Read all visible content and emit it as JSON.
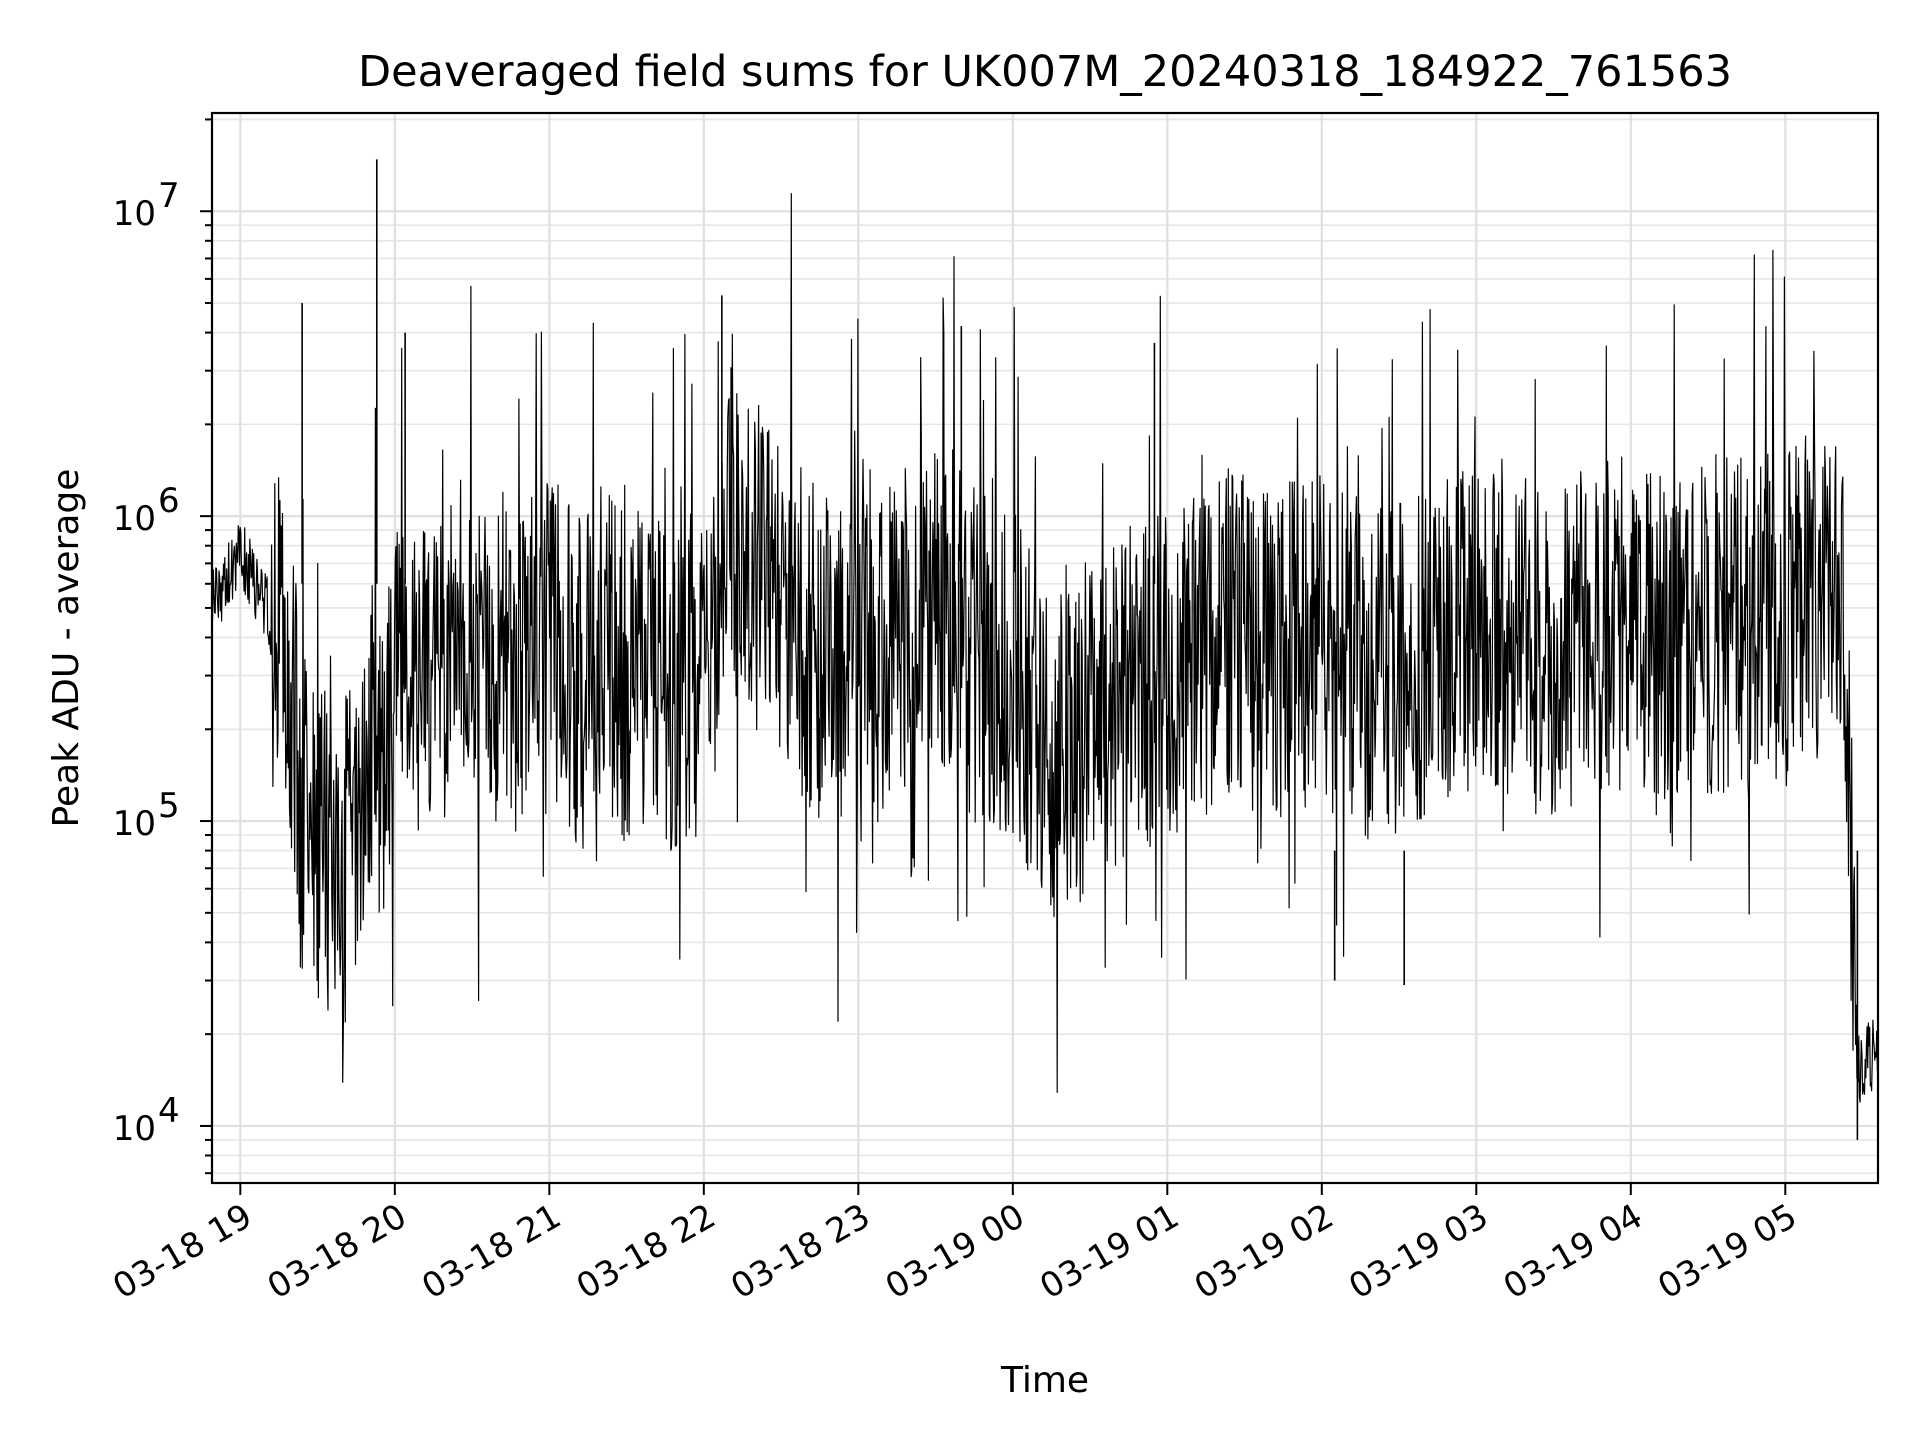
{
  "chart_data": {
    "type": "line",
    "title": "Deaveraged field sums for UK007M_20240318_184922_761563",
    "xlabel": "Time",
    "ylabel": "Peak ADU - average",
    "y_scale": "log",
    "ylim": [
      6500,
      21000000
    ],
    "xlim": [
      "2024-03-18 18:49",
      "2024-03-19 05:36"
    ],
    "x_ticks": [
      {
        "time": "2024-03-18 19:00",
        "label": "03-18 19"
      },
      {
        "time": "2024-03-18 20:00",
        "label": "03-18 20"
      },
      {
        "time": "2024-03-18 21:00",
        "label": "03-18 21"
      },
      {
        "time": "2024-03-18 22:00",
        "label": "03-18 22"
      },
      {
        "time": "2024-03-18 23:00",
        "label": "03-18 23"
      },
      {
        "time": "2024-03-19 00:00",
        "label": "03-19 00"
      },
      {
        "time": "2024-03-19 01:00",
        "label": "03-19 01"
      },
      {
        "time": "2024-03-19 02:00",
        "label": "03-19 02"
      },
      {
        "time": "2024-03-19 03:00",
        "label": "03-19 03"
      },
      {
        "time": "2024-03-19 04:00",
        "label": "03-19 04"
      },
      {
        "time": "2024-03-19 05:00",
        "label": "03-19 05"
      }
    ],
    "y_ticks": [
      {
        "value": 10000,
        "base": "10",
        "exp": "4"
      },
      {
        "value": 100000,
        "base": "10",
        "exp": "5"
      },
      {
        "value": 1000000,
        "base": "10",
        "exp": "6"
      },
      {
        "value": 10000000,
        "base": "10",
        "exp": "7"
      }
    ],
    "grid": true,
    "line_color": "#000000",
    "series": [
      {
        "x": [
          "2024-03-18 18:49",
          "2024-03-18 19:00",
          "2024-03-18 19:10",
          "2024-03-18 19:15",
          "2024-03-18 19:20",
          "2024-03-18 19:24",
          "2024-03-18 19:30",
          "2024-03-18 19:40",
          "2024-03-18 19:50",
          "2024-03-18 19:55",
          "2024-03-18 20:00",
          "2024-03-18 20:10",
          "2024-03-18 20:20",
          "2024-03-18 20:30",
          "2024-03-18 20:40",
          "2024-03-18 20:50",
          "2024-03-18 21:00",
          "2024-03-18 21:10",
          "2024-03-18 21:20",
          "2024-03-18 21:30",
          "2024-03-18 21:40",
          "2024-03-18 21:50",
          "2024-03-18 22:00",
          "2024-03-18 22:07",
          "2024-03-18 22:15",
          "2024-03-18 22:30",
          "2024-03-18 22:45",
          "2024-03-18 23:00",
          "2024-03-18 23:15",
          "2024-03-18 23:30",
          "2024-03-18 23:45",
          "2024-03-19 00:00",
          "2024-03-19 00:20",
          "2024-03-19 00:40",
          "2024-03-19 01:00",
          "2024-03-19 01:20",
          "2024-03-19 01:40",
          "2024-03-19 02:00",
          "2024-03-19 02:20",
          "2024-03-19 02:40",
          "2024-03-19 03:00",
          "2024-03-19 03:20",
          "2024-03-19 03:40",
          "2024-03-19 04:00",
          "2024-03-19 04:20",
          "2024-03-19 04:40",
          "2024-03-19 05:00",
          "2024-03-19 05:15",
          "2024-03-19 05:22",
          "2024-03-19 05:28",
          "2024-03-19 05:36"
        ],
        "values": [
          500000,
          750000,
          500000,
          400000,
          250000,
          100000,
          80000,
          70000,
          200000,
          150000,
          300000,
          250000,
          300000,
          400000,
          350000,
          300000,
          400000,
          300000,
          350000,
          300000,
          300000,
          250000,
          300000,
          900000,
          800000,
          500000,
          350000,
          300000,
          400000,
          600000,
          350000,
          300000,
          150000,
          250000,
          300000,
          400000,
          350000,
          400000,
          300000,
          350000,
          450000,
          350000,
          400000,
          450000,
          400000,
          450000,
          450000,
          600000,
          750000,
          15000,
          18000
        ]
      }
    ],
    "annotations": [
      {
        "time": "2024-03-18 19:24",
        "value": 5000000
      },
      {
        "time": "2024-03-18 19:53",
        "value": 14800000
      },
      {
        "time": "2024-03-18 20:04",
        "value": 4000000
      },
      {
        "time": "2024-03-18 22:07",
        "value": 5300000
      },
      {
        "time": "2024-03-18 23:40",
        "value": 4200000
      },
      {
        "time": "2024-03-19 00:55",
        "value": 3700000
      },
      {
        "time": "2024-03-19 02:05",
        "value": 30000
      },
      {
        "time": "2024-03-19 02:32",
        "value": 29000
      },
      {
        "time": "2024-03-19 05:28",
        "value": 9000
      }
    ]
  }
}
